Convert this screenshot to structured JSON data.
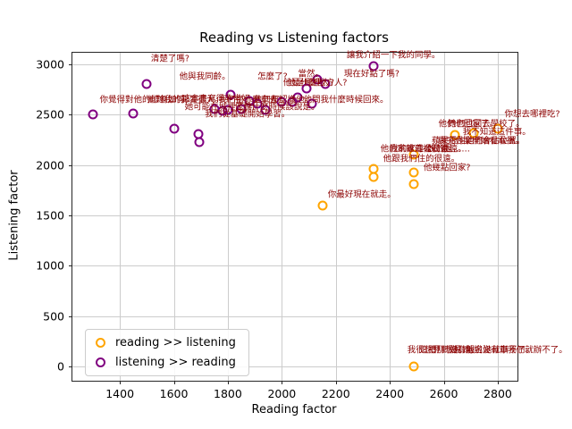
{
  "chart_data": {
    "type": "scatter",
    "title": "Reading vs Listening factors",
    "xlabel": "Reading factor",
    "ylabel": "Listening factor",
    "xlim": [
      1224,
      2873
    ],
    "ylim": [
      -142,
      3115
    ],
    "xticks": [
      1400,
      1600,
      1800,
      2000,
      2200,
      2400,
      2600,
      2800
    ],
    "yticks": [
      0,
      500,
      1000,
      1500,
      2000,
      2500,
      3000
    ],
    "grid": true,
    "legend_position": "lower left",
    "annotation_color": "#8b0000",
    "series": [
      {
        "name": "reading >> listening",
        "color": "#FFA500",
        "points": [
          [
            2150,
            1600
          ],
          [
            2340,
            1960
          ],
          [
            2340,
            1880
          ],
          [
            2490,
            2100
          ],
          [
            2490,
            1930
          ],
          [
            2490,
            1810
          ],
          [
            2640,
            2300
          ],
          [
            2710,
            2320
          ],
          [
            2800,
            2360
          ],
          [
            2490,
            0
          ]
        ]
      },
      {
        "name": "listening >> reading",
        "color": "#800080",
        "points": [
          [
            1300,
            2500
          ],
          [
            1450,
            2510
          ],
          [
            1500,
            2800
          ],
          [
            1600,
            2360
          ],
          [
            1690,
            2310
          ],
          [
            1695,
            2230
          ],
          [
            1750,
            2560
          ],
          [
            1780,
            2540
          ],
          [
            1800,
            2550
          ],
          [
            1810,
            2700
          ],
          [
            1850,
            2560
          ],
          [
            1880,
            2640
          ],
          [
            1910,
            2610
          ],
          [
            1940,
            2550
          ],
          [
            2000,
            2630
          ],
          [
            2040,
            2630
          ],
          [
            2060,
            2670
          ],
          [
            2090,
            2760
          ],
          [
            2110,
            2610
          ],
          [
            2130,
            2850
          ],
          [
            2160,
            2800
          ],
          [
            2340,
            2980
          ]
        ]
      }
    ],
    "annotations": [
      {
        "text": "清楚了嗎?",
        "x": 1515,
        "y": 3040
      },
      {
        "text": "他與我同齡。",
        "x": 1620,
        "y": 2870
      },
      {
        "text": "怎麼了?",
        "x": 1910,
        "y": 2870
      },
      {
        "text": "他是哪裡人?",
        "x": 2020,
        "y": 2800
      },
      {
        "text": "他是什麼地方人?",
        "x": 2005,
        "y": 2806
      },
      {
        "text": "讓我介紹一下我的同學。",
        "x": 2240,
        "y": 3080
      },
      {
        "text": "當然。",
        "x": 2060,
        "y": 2890
      },
      {
        "text": "現在好點了嗎?",
        "x": 2230,
        "y": 2890
      },
      {
        "text": "你覺得對他的印象如何?",
        "x": 1325,
        "y": 2640
      },
      {
        "text": "他對我的影響很大。",
        "x": 1500,
        "y": 2636
      },
      {
        "text": "這本書寫得非常好。",
        "x": 1630,
        "y": 2643
      },
      {
        "text": "我們坐什麼車去?",
        "x": 1765,
        "y": 2640
      },
      {
        "text": "他們都認識他。",
        "x": 1895,
        "y": 2637
      },
      {
        "text": "他問我什麼時候回來。",
        "x": 2080,
        "y": 2640
      },
      {
        "text": "她可能在城裡工作。",
        "x": 1640,
        "y": 2565
      },
      {
        "text": "他說什麼時候該說是。",
        "x": 1825,
        "y": 2565
      },
      {
        "text": "我們從基礎開始學習。",
        "x": 1715,
        "y": 2495
      },
      {
        "text": "你想去哪裡吃?",
        "x": 2825,
        "y": 2495
      },
      {
        "text": "她們也回去學校了。",
        "x": 2615,
        "y": 2395
      },
      {
        "text": "他們也回家了。",
        "x": 2580,
        "y": 2399
      },
      {
        "text": "我不知道這件事。",
        "x": 2670,
        "y": 2315
      },
      {
        "text": "蘋果很甜。",
        "x": 2555,
        "y": 2225
      },
      {
        "text": "做完作業開始看電視。",
        "x": 2580,
        "y": 2229
      },
      {
        "text": "他們會佔位置。",
        "x": 2680,
        "y": 2225
      },
      {
        "text": "他的家離這裡很遠。",
        "x": 2365,
        "y": 2145
      },
      {
        "text": "我的家離公司很遠。",
        "x": 2400,
        "y": 2149
      },
      {
        "text": "說的是……",
        "x": 2540,
        "y": 2145
      },
      {
        "text": "他跟我們住的很遠。",
        "x": 2375,
        "y": 2050
      },
      {
        "text": "他幾點回家?",
        "x": 2525,
        "y": 1960
      },
      {
        "text": "你最好現在就走。",
        "x": 2170,
        "y": 1695
      },
      {
        "text": "我很想見到她。",
        "x": 2465,
        "y": 150
      },
      {
        "text": "這禮拜想見她。",
        "x": 2510,
        "y": 153
      },
      {
        "text": "沒有報名她就辦不了。",
        "x": 2620,
        "y": 150
      },
      {
        "text": "她說沒有車我們就辦不了。",
        "x": 2680,
        "y": 147
      }
    ]
  }
}
